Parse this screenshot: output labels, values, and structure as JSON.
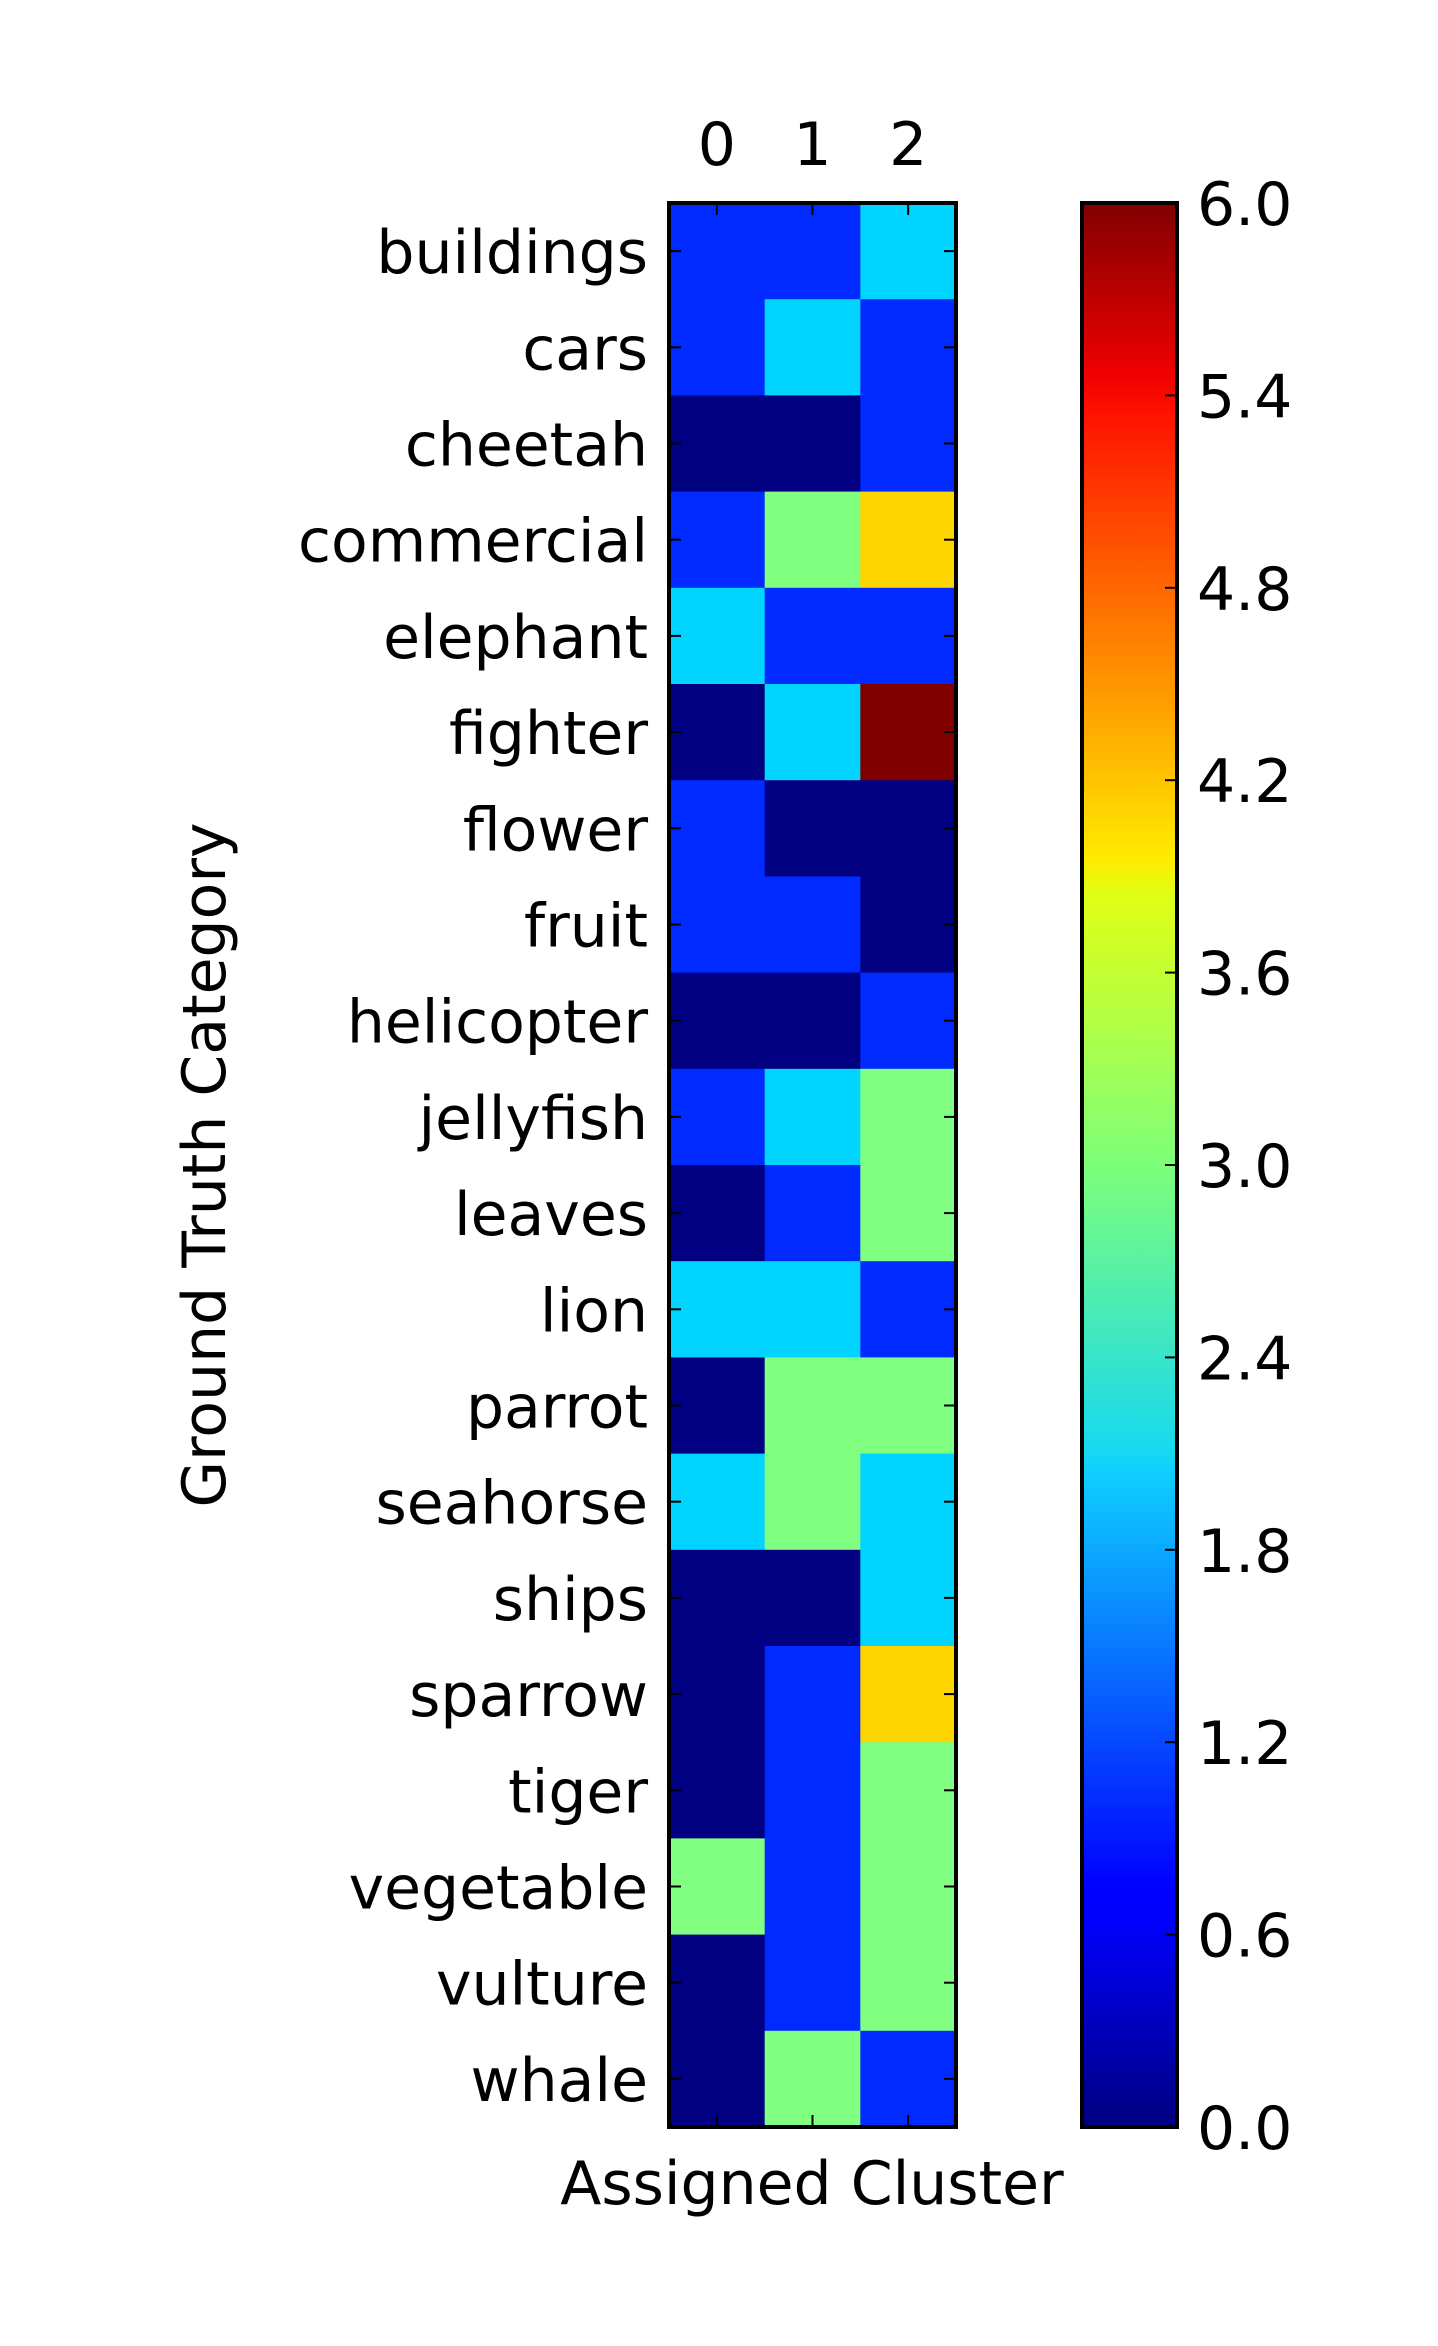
{
  "chart_data": {
    "type": "heatmap",
    "xlabel": "Assigned Cluster",
    "ylabel": "Ground Truth Category",
    "x_categories": [
      "0",
      "1",
      "2"
    ],
    "y_categories": [
      "buildings",
      "cars",
      "cheetah",
      "commercial",
      "elephant",
      "fighter",
      "flower",
      "fruit",
      "helicopter",
      "jellyfish",
      "leaves",
      "lion",
      "parrot",
      "seahorse",
      "ships",
      "sparrow",
      "tiger",
      "vegetable",
      "vulture",
      "whale"
    ],
    "values": [
      [
        1,
        1,
        2
      ],
      [
        1,
        2,
        1
      ],
      [
        0,
        0,
        1
      ],
      [
        1,
        3,
        4
      ],
      [
        2,
        1,
        1
      ],
      [
        0,
        2,
        6
      ],
      [
        1,
        0,
        0
      ],
      [
        1,
        1,
        0
      ],
      [
        0,
        0,
        1
      ],
      [
        1,
        2,
        3
      ],
      [
        0,
        1,
        3
      ],
      [
        2,
        2,
        1
      ],
      [
        0,
        3,
        3
      ],
      [
        2,
        3,
        2
      ],
      [
        0,
        0,
        2
      ],
      [
        0,
        1,
        4
      ],
      [
        0,
        1,
        3
      ],
      [
        3,
        1,
        3
      ],
      [
        0,
        1,
        3
      ],
      [
        0,
        3,
        1
      ]
    ],
    "colormap": "jet",
    "colorbar": {
      "min": 0.0,
      "max": 6.0,
      "ticks": [
        "0.0",
        "0.6",
        "1.2",
        "1.8",
        "2.4",
        "3.0",
        "3.6",
        "4.2",
        "4.8",
        "5.4",
        "6.0"
      ]
    },
    "grid": false
  }
}
